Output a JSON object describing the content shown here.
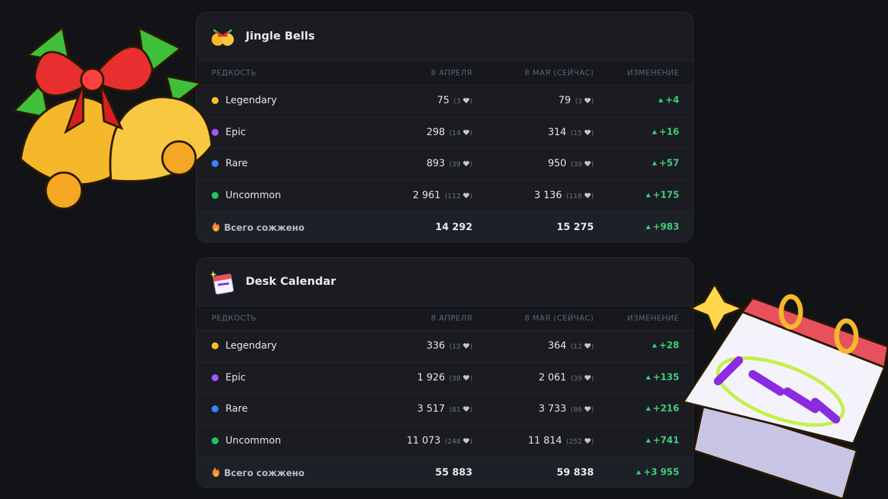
{
  "cards": [
    {
      "title": "Jingle Bells",
      "columns": [
        "РЕДКОСТЬ",
        "8 АПРЕЛЯ",
        "8 МАЯ (СЕЙЧАС)",
        "ИЗМЕНЕНИЕ"
      ],
      "rows": [
        {
          "rarity": "Legendary",
          "color": "#f5c518",
          "april": "75",
          "april_sub": "3",
          "may": "79",
          "may_sub": "3",
          "change": "+4"
        },
        {
          "rarity": "Epic",
          "color": "#a855f7",
          "april": "298",
          "april_sub": "14",
          "may": "314",
          "may_sub": "15",
          "change": "+16"
        },
        {
          "rarity": "Rare",
          "color": "#3b82f6",
          "april": "893",
          "april_sub": "39",
          "may": "950",
          "may_sub": "39",
          "change": "+57"
        },
        {
          "rarity": "Uncommon",
          "color": "#22c55e",
          "april": "2 961",
          "april_sub": "112",
          "may": "3 136",
          "may_sub": "118",
          "change": "+175"
        }
      ],
      "total": {
        "label": "Всего сожжено",
        "april": "14 292",
        "may": "15 275",
        "change": "+983"
      }
    },
    {
      "title": "Desk Calendar",
      "columns": [
        "РЕДКОСТЬ",
        "8 АПРЕЛЯ",
        "8 МАЯ (СЕЙЧАС)",
        "ИЗМЕНЕНИЕ"
      ],
      "rows": [
        {
          "rarity": "Legendary",
          "color": "#f5c518",
          "april": "336",
          "april_sub": "12",
          "may": "364",
          "may_sub": "12",
          "change": "+28"
        },
        {
          "rarity": "Epic",
          "color": "#a855f7",
          "april": "1 926",
          "april_sub": "38",
          "may": "2 061",
          "may_sub": "39",
          "change": "+135"
        },
        {
          "rarity": "Rare",
          "color": "#3b82f6",
          "april": "3 517",
          "april_sub": "81",
          "may": "3 733",
          "may_sub": "86",
          "change": "+216"
        },
        {
          "rarity": "Uncommon",
          "color": "#22c55e",
          "april": "11 073",
          "april_sub": "248",
          "may": "11 814",
          "may_sub": "252",
          "change": "+741"
        }
      ],
      "total": {
        "label": "Всего сожжено",
        "april": "55 883",
        "may": "59 838",
        "change": "+3 955"
      }
    }
  ]
}
